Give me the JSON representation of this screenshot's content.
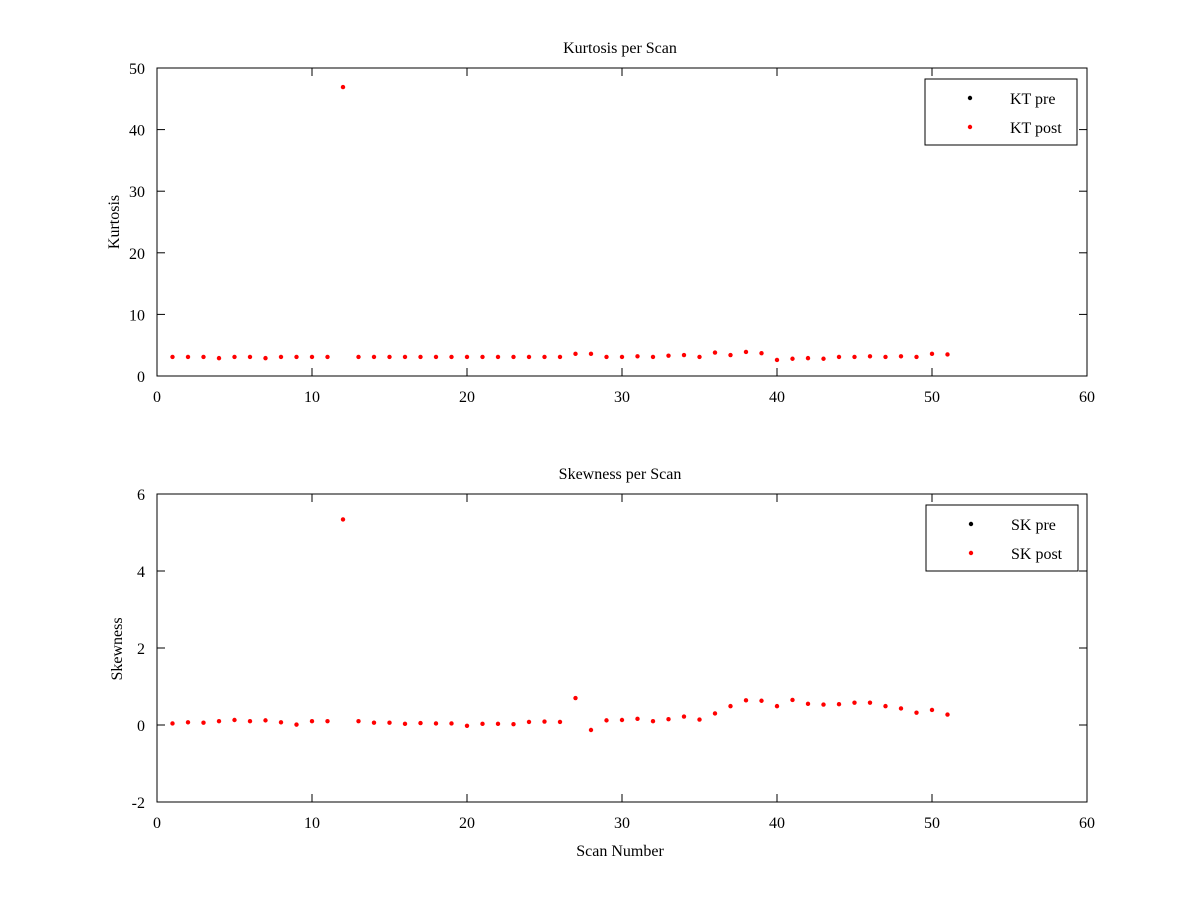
{
  "figure": {
    "background": "#ffffff"
  },
  "chart_data": [
    {
      "type": "scatter",
      "title": "Kurtosis per Scan",
      "xlabel": "",
      "ylabel": "Kurtosis",
      "xlim": [
        0,
        60
      ],
      "ylim": [
        0,
        50
      ],
      "xticks": [
        0,
        10,
        20,
        30,
        40,
        50,
        60
      ],
      "yticks": [
        0,
        10,
        20,
        30,
        40,
        50
      ],
      "grid": false,
      "legend_position": "top-right",
      "series": [
        {
          "name": "KT pre",
          "color": "#000000",
          "marker": "dot",
          "x": [],
          "y": []
        },
        {
          "name": "KT post",
          "color": "#ff0000",
          "marker": "dot",
          "x": [
            1,
            2,
            3,
            4,
            5,
            6,
            7,
            8,
            9,
            10,
            11,
            12,
            13,
            14,
            15,
            16,
            17,
            18,
            19,
            20,
            21,
            22,
            23,
            24,
            25,
            26,
            27,
            28,
            29,
            30,
            31,
            32,
            33,
            34,
            35,
            36,
            37,
            38,
            39,
            40,
            41,
            42,
            43,
            44,
            45,
            46,
            47,
            48,
            49,
            50,
            51
          ],
          "y": [
            3.1,
            3.1,
            3.1,
            2.9,
            3.1,
            3.1,
            2.9,
            3.1,
            3.1,
            3.1,
            3.1,
            46.9,
            3.1,
            3.1,
            3.1,
            3.1,
            3.1,
            3.1,
            3.1,
            3.1,
            3.1,
            3.1,
            3.1,
            3.1,
            3.1,
            3.1,
            3.6,
            3.6,
            3.1,
            3.1,
            3.2,
            3.1,
            3.3,
            3.4,
            3.1,
            3.8,
            3.4,
            3.9,
            3.7,
            2.6,
            2.8,
            2.9,
            2.8,
            3.1,
            3.1,
            3.2,
            3.1,
            3.2,
            3.1,
            3.6,
            3.5
          ]
        }
      ]
    },
    {
      "type": "scatter",
      "title": "Skewness per Scan",
      "xlabel": "Scan Number",
      "ylabel": "Skewness",
      "xlim": [
        0,
        60
      ],
      "ylim": [
        -2,
        6
      ],
      "xticks": [
        0,
        10,
        20,
        30,
        40,
        50,
        60
      ],
      "yticks": [
        -2,
        0,
        2,
        4,
        6
      ],
      "grid": false,
      "legend_position": "top-right",
      "series": [
        {
          "name": "SK pre",
          "color": "#000000",
          "marker": "dot",
          "x": [],
          "y": []
        },
        {
          "name": "SK post",
          "color": "#ff0000",
          "marker": "dot",
          "x": [
            1,
            2,
            3,
            4,
            5,
            6,
            7,
            8,
            9,
            10,
            11,
            12,
            13,
            14,
            15,
            16,
            17,
            18,
            19,
            20,
            21,
            22,
            23,
            24,
            25,
            26,
            27,
            28,
            29,
            30,
            31,
            32,
            33,
            34,
            35,
            36,
            37,
            38,
            39,
            40,
            41,
            42,
            43,
            44,
            45,
            46,
            47,
            48,
            49,
            50,
            51
          ],
          "y": [
            0.04,
            0.07,
            0.06,
            0.1,
            0.13,
            0.1,
            0.12,
            0.07,
            0.01,
            0.1,
            0.1,
            5.34,
            0.1,
            0.06,
            0.06,
            0.03,
            0.05,
            0.04,
            0.04,
            -0.02,
            0.03,
            0.03,
            0.02,
            0.08,
            0.09,
            0.08,
            0.7,
            -0.13,
            0.12,
            0.13,
            0.16,
            0.1,
            0.15,
            0.22,
            0.14,
            0.3,
            0.49,
            0.64,
            0.63,
            0.49,
            0.65,
            0.55,
            0.53,
            0.54,
            0.58,
            0.58,
            0.49,
            0.43,
            0.32,
            0.39,
            0.27
          ]
        }
      ]
    }
  ]
}
